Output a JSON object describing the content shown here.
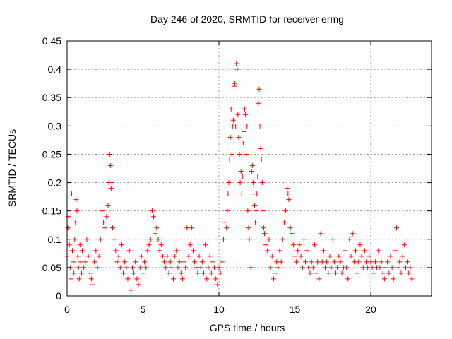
{
  "chart_data": {
    "type": "scatter",
    "title": "Day 246 of 2020, SRMTID for receiver ermg",
    "xlabel": "GPS time / hours",
    "ylabel": "SRMTID / TECUs",
    "xlim": [
      0,
      24
    ],
    "ylim": [
      0,
      0.45
    ],
    "xticks": [
      0,
      5,
      10,
      15,
      20
    ],
    "xtick_labels": [
      "0",
      "5",
      "10",
      "15",
      "20"
    ],
    "yticks": [
      0,
      0.05,
      0.1,
      0.15,
      0.2,
      0.25,
      0.3,
      0.35,
      0.4,
      0.45
    ],
    "ytick_labels": [
      "0",
      "0.05",
      "0.1",
      "0.15",
      "0.2",
      "0.25",
      "0.3",
      "0.35",
      "0.4",
      "0.45"
    ],
    "grid": true,
    "marker": "+",
    "color": "#ff0000",
    "series": [
      {
        "name": "SRMTID",
        "points": [
          [
            0.0,
            0.07
          ],
          [
            0.05,
            0.12
          ],
          [
            0.1,
            0.14
          ],
          [
            0.15,
            0.09
          ],
          [
            0.2,
            0.05
          ],
          [
            0.25,
            0.03
          ],
          [
            0.3,
            0.18
          ],
          [
            0.35,
            0.08
          ],
          [
            0.4,
            0.06
          ],
          [
            0.45,
            0.04
          ],
          [
            0.5,
            0.1
          ],
          [
            0.55,
            0.13
          ],
          [
            0.6,
            0.17
          ],
          [
            0.65,
            0.15
          ],
          [
            0.7,
            0.07
          ],
          [
            0.75,
            0.05
          ],
          [
            0.8,
            0.03
          ],
          [
            0.85,
            0.09
          ],
          [
            0.9,
            0.06
          ],
          [
            0.95,
            0.04
          ],
          [
            1.0,
            0.08
          ],
          [
            1.1,
            0.05
          ],
          [
            1.2,
            0.06
          ],
          [
            1.3,
            0.1
          ],
          [
            1.4,
            0.07
          ],
          [
            1.5,
            0.04
          ],
          [
            1.6,
            0.03
          ],
          [
            1.7,
            0.02
          ],
          [
            1.8,
            0.06
          ],
          [
            1.9,
            0.08
          ],
          [
            2.0,
            0.05
          ],
          [
            2.1,
            0.07
          ],
          [
            2.2,
            0.1
          ],
          [
            2.3,
            0.15
          ],
          [
            2.4,
            0.13
          ],
          [
            2.5,
            0.12
          ],
          [
            2.6,
            0.14
          ],
          [
            2.7,
            0.16
          ],
          [
            2.75,
            0.2
          ],
          [
            2.8,
            0.25
          ],
          [
            2.85,
            0.23
          ],
          [
            2.9,
            0.19
          ],
          [
            2.95,
            0.2
          ],
          [
            3.0,
            0.12
          ],
          [
            3.1,
            0.1
          ],
          [
            3.2,
            0.08
          ],
          [
            3.3,
            0.06
          ],
          [
            3.4,
            0.07
          ],
          [
            3.5,
            0.05
          ],
          [
            3.6,
            0.09
          ],
          [
            3.7,
            0.04
          ],
          [
            3.8,
            0.06
          ],
          [
            3.9,
            0.05
          ],
          [
            4.0,
            0.03
          ],
          [
            4.1,
            0.08
          ],
          [
            4.2,
            0.01
          ],
          [
            4.3,
            0.05
          ],
          [
            4.4,
            0.04
          ],
          [
            4.5,
            0.06
          ],
          [
            4.6,
            0.03
          ],
          [
            4.7,
            0.02
          ],
          [
            4.8,
            0.05
          ],
          [
            4.9,
            0.07
          ],
          [
            5.0,
            0.04
          ],
          [
            5.1,
            0.06
          ],
          [
            5.2,
            0.05
          ],
          [
            5.3,
            0.08
          ],
          [
            5.4,
            0.09
          ],
          [
            5.5,
            0.1
          ],
          [
            5.6,
            0.15
          ],
          [
            5.7,
            0.14
          ],
          [
            5.8,
            0.11
          ],
          [
            5.9,
            0.12
          ],
          [
            6.0,
            0.1
          ],
          [
            6.1,
            0.08
          ],
          [
            6.2,
            0.09
          ],
          [
            6.3,
            0.07
          ],
          [
            6.4,
            0.06
          ],
          [
            6.5,
            0.05
          ],
          [
            6.6,
            0.07
          ],
          [
            6.7,
            0.04
          ],
          [
            6.8,
            0.06
          ],
          [
            6.9,
            0.05
          ],
          [
            7.0,
            0.03
          ],
          [
            7.1,
            0.07
          ],
          [
            7.2,
            0.08
          ],
          [
            7.3,
            0.05
          ],
          [
            7.4,
            0.06
          ],
          [
            7.5,
            0.04
          ],
          [
            7.6,
            0.03
          ],
          [
            7.7,
            0.06
          ],
          [
            7.8,
            0.05
          ],
          [
            7.9,
            0.12
          ],
          [
            8.0,
            0.07
          ],
          [
            8.1,
            0.09
          ],
          [
            8.2,
            0.12
          ],
          [
            8.3,
            0.08
          ],
          [
            8.4,
            0.06
          ],
          [
            8.5,
            0.05
          ],
          [
            8.6,
            0.04
          ],
          [
            8.7,
            0.07
          ],
          [
            8.8,
            0.05
          ],
          [
            8.9,
            0.06
          ],
          [
            9.0,
            0.04
          ],
          [
            9.1,
            0.09
          ],
          [
            9.2,
            0.03
          ],
          [
            9.3,
            0.05
          ],
          [
            9.4,
            0.07
          ],
          [
            9.5,
            0.04
          ],
          [
            9.6,
            0.06
          ],
          [
            9.7,
            0.05
          ],
          [
            9.8,
            0.03
          ],
          [
            9.9,
            0.02
          ],
          [
            10.0,
            0.05
          ],
          [
            10.1,
            0.04
          ],
          [
            10.2,
            0.06
          ],
          [
            10.3,
            0.1
          ],
          [
            10.4,
            0.13
          ],
          [
            10.5,
            0.12
          ],
          [
            10.55,
            0.15
          ],
          [
            10.6,
            0.18
          ],
          [
            10.65,
            0.2
          ],
          [
            10.7,
            0.24
          ],
          [
            10.75,
            0.28
          ],
          [
            10.8,
            0.33
          ],
          [
            10.85,
            0.25
          ],
          [
            10.9,
            0.3
          ],
          [
            10.95,
            0.31
          ],
          [
            11.0,
            0.37
          ],
          [
            11.05,
            0.375
          ],
          [
            11.1,
            0.3
          ],
          [
            11.15,
            0.41
          ],
          [
            11.2,
            0.4
          ],
          [
            11.25,
            0.32
          ],
          [
            11.3,
            0.28
          ],
          [
            11.35,
            0.25
          ],
          [
            11.4,
            0.2
          ],
          [
            11.45,
            0.22
          ],
          [
            11.5,
            0.18
          ],
          [
            11.55,
            0.21
          ],
          [
            11.6,
            0.27
          ],
          [
            11.65,
            0.29
          ],
          [
            11.7,
            0.33
          ],
          [
            11.75,
            0.32
          ],
          [
            11.8,
            0.25
          ],
          [
            11.85,
            0.3
          ],
          [
            11.9,
            0.15
          ],
          [
            11.95,
            0.12
          ],
          [
            12.0,
            0.1
          ],
          [
            12.1,
            0.05
          ],
          [
            12.15,
            0.22
          ],
          [
            12.2,
            0.23
          ],
          [
            12.25,
            0.2
          ],
          [
            12.3,
            0.18
          ],
          [
            12.35,
            0.16
          ],
          [
            12.4,
            0.13
          ],
          [
            12.45,
            0.15
          ],
          [
            12.5,
            0.18
          ],
          [
            12.55,
            0.21
          ],
          [
            12.6,
            0.34
          ],
          [
            12.65,
            0.365
          ],
          [
            12.7,
            0.3
          ],
          [
            12.75,
            0.26
          ],
          [
            12.8,
            0.24
          ],
          [
            12.85,
            0.2
          ],
          [
            12.9,
            0.15
          ],
          [
            12.95,
            0.12
          ],
          [
            13.0,
            0.11
          ],
          [
            13.1,
            0.09
          ],
          [
            13.2,
            0.08
          ],
          [
            13.3,
            0.1
          ],
          [
            13.4,
            0.05
          ],
          [
            13.5,
            0.07
          ],
          [
            13.6,
            0.03
          ],
          [
            13.7,
            0.04
          ],
          [
            13.8,
            0.06
          ],
          [
            13.9,
            0.05
          ],
          [
            14.0,
            0.08
          ],
          [
            14.1,
            0.06
          ],
          [
            14.2,
            0.1
          ],
          [
            14.3,
            0.13
          ],
          [
            14.4,
            0.15
          ],
          [
            14.5,
            0.19
          ],
          [
            14.55,
            0.18
          ],
          [
            14.6,
            0.17
          ],
          [
            14.7,
            0.12
          ],
          [
            14.8,
            0.11
          ],
          [
            14.9,
            0.09
          ],
          [
            15.0,
            0.07
          ],
          [
            15.1,
            0.06
          ],
          [
            15.2,
            0.08
          ],
          [
            15.3,
            0.09
          ],
          [
            15.4,
            0.07
          ],
          [
            15.5,
            0.05
          ],
          [
            15.6,
            0.1
          ],
          [
            15.7,
            0.06
          ],
          [
            15.8,
            0.08
          ],
          [
            15.9,
            0.05
          ],
          [
            16.0,
            0.04
          ],
          [
            16.1,
            0.06
          ],
          [
            16.2,
            0.05
          ],
          [
            16.3,
            0.09
          ],
          [
            16.4,
            0.04
          ],
          [
            16.5,
            0.06
          ],
          [
            16.6,
            0.03
          ],
          [
            16.7,
            0.11
          ],
          [
            16.8,
            0.06
          ],
          [
            16.9,
            0.08
          ],
          [
            17.0,
            0.05
          ],
          [
            17.1,
            0.06
          ],
          [
            17.2,
            0.04
          ],
          [
            17.3,
            0.07
          ],
          [
            17.4,
            0.05
          ],
          [
            17.5,
            0.1
          ],
          [
            17.6,
            0.06
          ],
          [
            17.7,
            0.04
          ],
          [
            17.8,
            0.05
          ],
          [
            17.9,
            0.07
          ],
          [
            18.0,
            0.06
          ],
          [
            18.1,
            0.04
          ],
          [
            18.2,
            0.05
          ],
          [
            18.3,
            0.08
          ],
          [
            18.4,
            0.05
          ],
          [
            18.5,
            0.03
          ],
          [
            18.6,
            0.1
          ],
          [
            18.7,
            0.07
          ],
          [
            18.8,
            0.11
          ],
          [
            18.9,
            0.06
          ],
          [
            19.0,
            0.08
          ],
          [
            19.1,
            0.04
          ],
          [
            19.2,
            0.06
          ],
          [
            19.3,
            0.09
          ],
          [
            19.4,
            0.07
          ],
          [
            19.5,
            0.05
          ],
          [
            19.6,
            0.08
          ],
          [
            19.7,
            0.06
          ],
          [
            19.8,
            0.05
          ],
          [
            19.9,
            0.07
          ],
          [
            20.0,
            0.06
          ],
          [
            20.1,
            0.05
          ],
          [
            20.2,
            0.04
          ],
          [
            20.3,
            0.06
          ],
          [
            20.4,
            0.05
          ],
          [
            20.5,
            0.08
          ],
          [
            20.6,
            0.05
          ],
          [
            20.7,
            0.06
          ],
          [
            20.8,
            0.04
          ],
          [
            20.9,
            0.03
          ],
          [
            21.0,
            0.05
          ],
          [
            21.1,
            0.06
          ],
          [
            21.2,
            0.04
          ],
          [
            21.3,
            0.07
          ],
          [
            21.4,
            0.05
          ],
          [
            21.5,
            0.03
          ],
          [
            21.6,
            0.08
          ],
          [
            21.7,
            0.12
          ],
          [
            21.8,
            0.05
          ],
          [
            21.9,
            0.06
          ],
          [
            22.0,
            0.04
          ],
          [
            22.1,
            0.07
          ],
          [
            22.2,
            0.09
          ],
          [
            22.3,
            0.05
          ],
          [
            22.4,
            0.06
          ],
          [
            22.5,
            0.04
          ],
          [
            22.6,
            0.05
          ],
          [
            22.7,
            0.03
          ]
        ]
      }
    ]
  }
}
